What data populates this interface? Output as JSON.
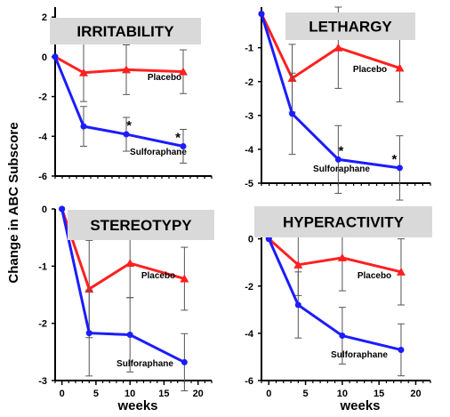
{
  "y_axis_title": "Change in ABC Subscore",
  "x_axis_title": "weeks",
  "chart_data": [
    {
      "type": "line",
      "title": "IRRITABILITY",
      "x": [
        0,
        4,
        10,
        18
      ],
      "ylim": [
        -6,
        2.5
      ],
      "y_ticks": [
        2,
        0,
        -2,
        -4,
        -6
      ],
      "x_ticks": [],
      "series": [
        {
          "name": "Placebo",
          "color": "#ff2020",
          "marker": "triangle",
          "values": [
            0,
            -0.8,
            -0.65,
            -0.75
          ],
          "err": [
            0,
            1.45,
            1.25,
            1.1
          ]
        },
        {
          "name": "Sulforaphane",
          "color": "#1c1cff",
          "marker": "circle",
          "values": [
            0,
            -3.5,
            -3.9,
            -4.5
          ],
          "err": [
            0,
            1.0,
            0.85,
            0.85
          ]
        }
      ],
      "significance": [
        {
          "x": 10,
          "series": "Sulforaphane",
          "label": "*"
        },
        {
          "x": 18,
          "series": "Sulforaphane",
          "label": "*"
        }
      ]
    },
    {
      "type": "line",
      "title": "LETHARGY",
      "x": [
        0,
        4,
        10,
        18
      ],
      "ylim": [
        -5,
        0.2
      ],
      "y_ticks": [
        -1,
        -2,
        -3,
        -4,
        -5
      ],
      "x_ticks": [],
      "series": [
        {
          "name": "Placebo",
          "color": "#ff2020",
          "marker": "triangle",
          "values": [
            0,
            -1.9,
            -1.0,
            -1.6
          ],
          "err": [
            0,
            1.0,
            1.2,
            1.0
          ]
        },
        {
          "name": "Sulforaphane",
          "color": "#1c1cff",
          "marker": "circle",
          "values": [
            0,
            -2.95,
            -4.3,
            -4.55
          ],
          "err": [
            0,
            1.2,
            1.0,
            0.95
          ]
        }
      ],
      "significance": [
        {
          "x": 10,
          "series": "Sulforaphane",
          "label": "*"
        },
        {
          "x": 18,
          "series": "Sulforaphane",
          "label": "*"
        }
      ]
    },
    {
      "type": "line",
      "title": "STEREOTYPY",
      "x": [
        0,
        4,
        10,
        18
      ],
      "ylim": [
        -3,
        0
      ],
      "y_ticks": [
        0,
        -1,
        -2,
        -3
      ],
      "x_ticks": [
        0,
        5,
        10,
        15,
        20
      ],
      "series": [
        {
          "name": "Placebo",
          "color": "#ff2020",
          "marker": "triangle",
          "values": [
            0,
            -1.4,
            -0.95,
            -1.22
          ],
          "err": [
            0,
            0.85,
            0.6,
            0.55
          ]
        },
        {
          "name": "Sulforaphane",
          "color": "#1c1cff",
          "marker": "circle",
          "values": [
            0,
            -2.17,
            -2.2,
            -2.68
          ],
          "err": [
            0,
            0.75,
            0.65,
            0.5
          ]
        }
      ],
      "significance": []
    },
    {
      "type": "line",
      "title": "HYPERACTIVITY",
      "x": [
        0,
        4,
        10,
        18
      ],
      "ylim": [
        -6,
        0.4
      ],
      "y_ticks": [
        0,
        -2,
        -4,
        -6
      ],
      "x_ticks": [
        0,
        5,
        10,
        15,
        20
      ],
      "series": [
        {
          "name": "Placebo",
          "color": "#ff2020",
          "marker": "triangle",
          "values": [
            0,
            -1.1,
            -0.8,
            -1.4
          ],
          "err": [
            0,
            1.3,
            1.4,
            1.4
          ]
        },
        {
          "name": "Sulforaphane",
          "color": "#1c1cff",
          "marker": "circle",
          "values": [
            0,
            -2.8,
            -4.1,
            -4.7
          ],
          "err": [
            0,
            1.4,
            1.2,
            1.1
          ]
        }
      ],
      "significance": []
    }
  ]
}
